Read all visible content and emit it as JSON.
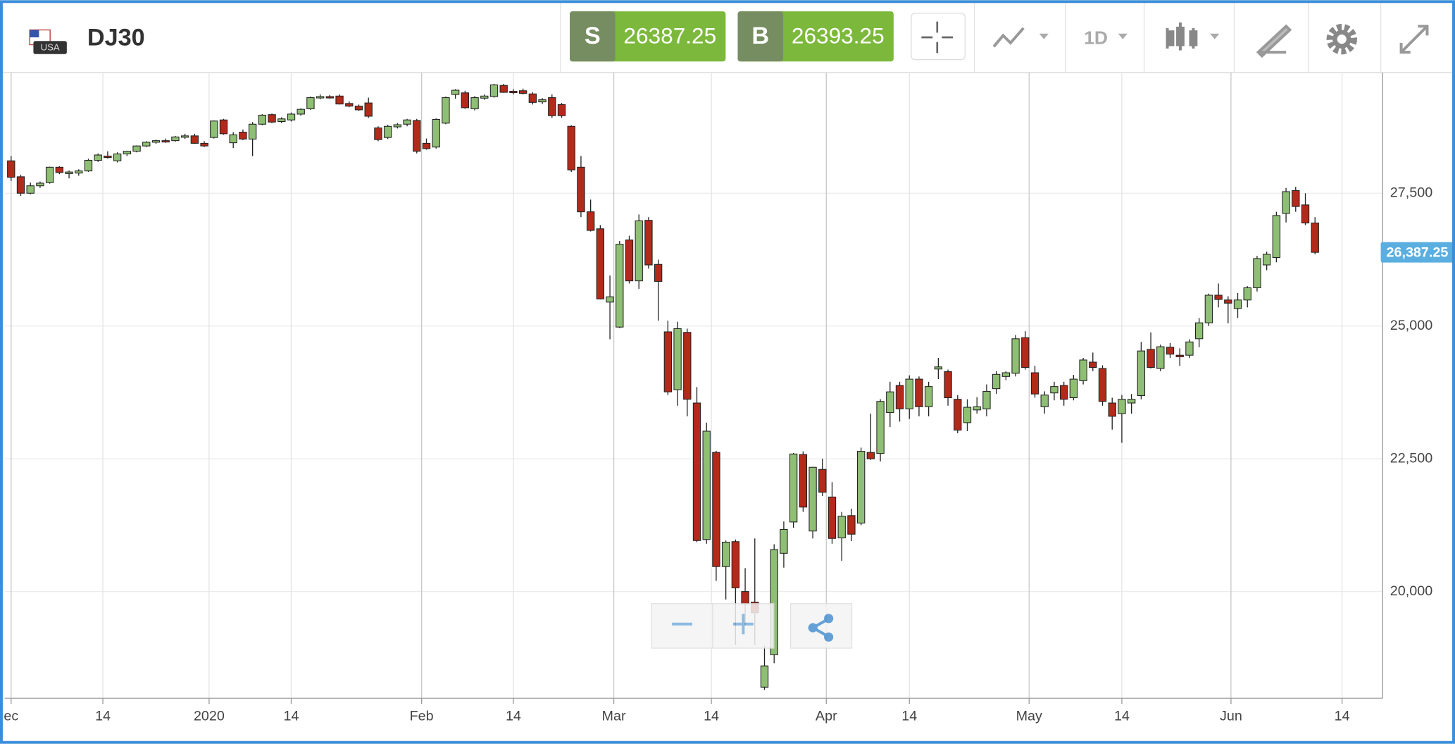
{
  "header": {
    "flag_label": "USA",
    "symbol": "DJ30",
    "sell": {
      "letter": "S",
      "price": "26387.25"
    },
    "buy": {
      "letter": "B",
      "price": "26393.25"
    },
    "timeframe": "1D"
  },
  "chart_data": {
    "type": "candlestick",
    "categories": [
      null,
      null,
      null,
      null,
      null,
      null,
      null,
      null,
      null,
      null,
      null,
      null,
      null,
      null,
      null,
      null,
      null,
      null,
      null,
      null,
      null,
      null,
      null,
      null,
      null,
      null,
      null,
      null,
      null,
      null,
      null,
      null,
      null,
      null,
      null,
      null,
      null,
      null,
      null,
      null,
      null,
      null,
      null,
      null,
      null,
      null,
      null,
      null,
      null,
      null,
      null,
      null,
      null,
      null,
      null,
      null,
      null,
      null,
      null,
      null,
      null,
      null,
      null,
      null,
      null,
      null,
      null,
      null,
      null,
      null,
      null,
      null,
      null,
      null,
      null,
      null,
      null,
      null,
      null,
      null,
      null,
      null,
      null,
      null,
      null,
      null,
      null,
      null,
      null,
      null,
      null,
      null,
      null,
      null,
      null,
      null,
      null,
      null,
      null,
      null,
      null,
      null,
      null,
      null,
      null,
      null,
      null,
      null,
      null,
      null,
      null,
      null,
      null,
      null,
      null,
      null,
      null,
      null,
      null,
      null,
      null,
      null,
      null,
      null,
      null,
      null,
      null,
      null,
      null,
      null,
      null,
      null,
      null,
      null,
      null,
      null
    ],
    "open": [
      28110,
      27810,
      27500,
      27640,
      27700,
      27990,
      27870,
      27880,
      27920,
      28120,
      28200,
      28110,
      28240,
      28290,
      28390,
      28460,
      28490,
      28490,
      28560,
      28580,
      28440,
      28550,
      28880,
      28450,
      28650,
      28520,
      28800,
      28980,
      28850,
      28880,
      28990,
      29090,
      29300,
      29320,
      29330,
      29190,
      29140,
      29200,
      28730,
      28550,
      28750,
      28800,
      28870,
      28440,
      28370,
      28820,
      29360,
      29390,
      29090,
      29290,
      29320,
      29530,
      29420,
      29430,
      29370,
      29220,
      29300,
      29170,
      28760,
      27990,
      27150,
      26830,
      25450,
      24980,
      26620,
      25850,
      26990,
      26160,
      24890,
      23800,
      24880,
      23550,
      20980,
      22620,
      20470,
      20940,
      20000,
      19800,
      18200,
      18810,
      20720,
      21310,
      22580,
      21140,
      22300,
      21780,
      21010,
      21430,
      21290,
      22620,
      22600,
      23370,
      23880,
      23440,
      24000,
      23480,
      24190,
      24140,
      23620,
      23180,
      23420,
      23440,
      23820,
      24050,
      24110,
      24780,
      24120,
      23480,
      23740,
      23880,
      23650,
      23970,
      24320,
      24200,
      23550,
      23350,
      23550,
      23690,
      24560,
      24200,
      24600,
      24450,
      24450,
      24760,
      25060,
      25580,
      25490,
      25330,
      25490,
      25720,
      26150,
      26290,
      27120,
      27550,
      27280,
      26940
    ],
    "high": [
      28200,
      27850,
      27700,
      27720,
      28000,
      28010,
      27930,
      27950,
      28150,
      28250,
      28290,
      28270,
      28300,
      28400,
      28480,
      28510,
      28530,
      28580,
      28620,
      28620,
      28480,
      28870,
      28900,
      28650,
      28700,
      28840,
      28990,
      29000,
      28930,
      29020,
      29100,
      29320,
      29360,
      29350,
      29360,
      29230,
      29170,
      29300,
      28760,
      28790,
      28820,
      28900,
      28900,
      28530,
      28910,
      29320,
      29460,
      29430,
      29330,
      29360,
      29560,
      29560,
      29460,
      29470,
      29400,
      29290,
      29360,
      29200,
      28780,
      28200,
      27380,
      26900,
      25950,
      26600,
      26700,
      27100,
      27050,
      26250,
      25100,
      25080,
      24950,
      23850,
      23180,
      22650,
      20960,
      20980,
      20440,
      21000,
      18980,
      20890,
      21320,
      22610,
      22640,
      22350,
      22500,
      22060,
      21500,
      21560,
      22710,
      23350,
      23620,
      23950,
      23950,
      24070,
      24050,
      23950,
      24400,
      24180,
      23700,
      23620,
      23660,
      23900,
      24150,
      24150,
      24830,
      24900,
      24250,
      23770,
      23950,
      23950,
      24080,
      24400,
      24500,
      24260,
      23650,
      23700,
      23720,
      24700,
      24880,
      24650,
      24680,
      24580,
      24750,
      25150,
      25610,
      25800,
      25560,
      25620,
      25750,
      26320,
      26400,
      27150,
      27600,
      27620,
      27500,
      27050
    ],
    "low": [
      27730,
      27450,
      27480,
      27600,
      27680,
      27860,
      27780,
      27830,
      27900,
      28090,
      28150,
      28080,
      28200,
      28270,
      28370,
      28430,
      28450,
      28470,
      28520,
      28430,
      28370,
      28530,
      28600,
      28350,
      28500,
      28200,
      28780,
      28820,
      28820,
      28850,
      28960,
      29070,
      29270,
      29280,
      29170,
      29120,
      29050,
      28920,
      28480,
      28520,
      28720,
      28760,
      28250,
      28320,
      28340,
      28800,
      29280,
      29090,
      29060,
      29260,
      29300,
      29390,
      29360,
      29360,
      29170,
      29180,
      28920,
      28920,
      27900,
      27050,
      26780,
      25500,
      24750,
      24960,
      25800,
      25700,
      26080,
      25100,
      23700,
      23500,
      23300,
      20930,
      20900,
      20200,
      19850,
      19000,
      19360,
      19000,
      18150,
      18650,
      20450,
      21200,
      21500,
      21000,
      21800,
      20900,
      20580,
      20950,
      21250,
      22480,
      22450,
      23100,
      23200,
      23250,
      23300,
      23300,
      24000,
      23500,
      22980,
      23020,
      23350,
      23300,
      23720,
      23980,
      24050,
      24180,
      23650,
      23350,
      23600,
      23500,
      23600,
      23900,
      24150,
      23500,
      23050,
      22800,
      23350,
      23620,
      24200,
      24150,
      24400,
      24250,
      24400,
      24600,
      25000,
      25350,
      25050,
      25150,
      25350,
      25650,
      26050,
      26200,
      26950,
      27150,
      26900,
      26350
    ],
    "close": [
      27800,
      27500,
      27640,
      27690,
      27990,
      27890,
      27900,
      27920,
      28120,
      28220,
      28180,
      28240,
      28290,
      28390,
      28460,
      28490,
      28480,
      28560,
      28580,
      28440,
      28390,
      28860,
      28620,
      28600,
      28520,
      28800,
      28970,
      28840,
      28900,
      28990,
      29080,
      29300,
      29320,
      29300,
      29180,
      29140,
      29070,
      28950,
      28510,
      28760,
      28790,
      28880,
      28290,
      28340,
      28890,
      29300,
      29440,
      29110,
      29300,
      29330,
      29540,
      29400,
      29400,
      29380,
      29210,
      29260,
      28960,
      28960,
      27940,
      27150,
      26800,
      25510,
      25550,
      26540,
      25850,
      26980,
      26150,
      25840,
      23760,
      24950,
      23620,
      20960,
      23020,
      20470,
      20930,
      20070,
      19770,
      19600,
      18600,
      20790,
      21170,
      22590,
      21590,
      22340,
      21870,
      21000,
      21420,
      21080,
      22640,
      22500,
      23580,
      23760,
      23440,
      24000,
      23480,
      23860,
      24230,
      23650,
      23040,
      23470,
      23480,
      23770,
      24090,
      24120,
      24760,
      24220,
      23720,
      23700,
      23860,
      23620,
      24000,
      24360,
      24220,
      23580,
      23300,
      23620,
      23620,
      24530,
      24220,
      24610,
      24470,
      24420,
      24700,
      25060,
      25580,
      25500,
      25430,
      25490,
      25720,
      26270,
      26350,
      27080,
      27530,
      27250,
      26940,
      26387.25
    ],
    "up_color": "#8fbf74",
    "down_color": "#b3291a",
    "xlim": [
      -0.67,
      142
    ],
    "xticks": [
      {
        "value": 0,
        "label": "ec"
      },
      {
        "value": 9.5,
        "label": "14"
      },
      {
        "value": 20.5,
        "label": "2020"
      },
      {
        "value": 29,
        "label": "14"
      },
      {
        "value": 42.5,
        "label": "Feb"
      },
      {
        "value": 52,
        "label": "14"
      },
      {
        "value": 62.4,
        "label": "Mar"
      },
      {
        "value": 72.5,
        "label": "14"
      },
      {
        "value": 84.4,
        "label": "Apr"
      },
      {
        "value": 93,
        "label": "14"
      },
      {
        "value": 105.4,
        "label": "May"
      },
      {
        "value": 115,
        "label": "14"
      },
      {
        "value": 126.3,
        "label": "Jun"
      },
      {
        "value": 137.8,
        "label": "14"
      }
    ],
    "ylim": [
      17990,
      29771
    ],
    "yticks": [
      {
        "value": 20000,
        "label": "20,000"
      },
      {
        "value": 22500,
        "label": "22,500"
      },
      {
        "value": 25000,
        "label": "25,000"
      },
      {
        "value": 27500,
        "label": "27,500"
      }
    ],
    "grid": true,
    "price_marker": {
      "value": 26387.25,
      "label": "26,387.25"
    }
  }
}
